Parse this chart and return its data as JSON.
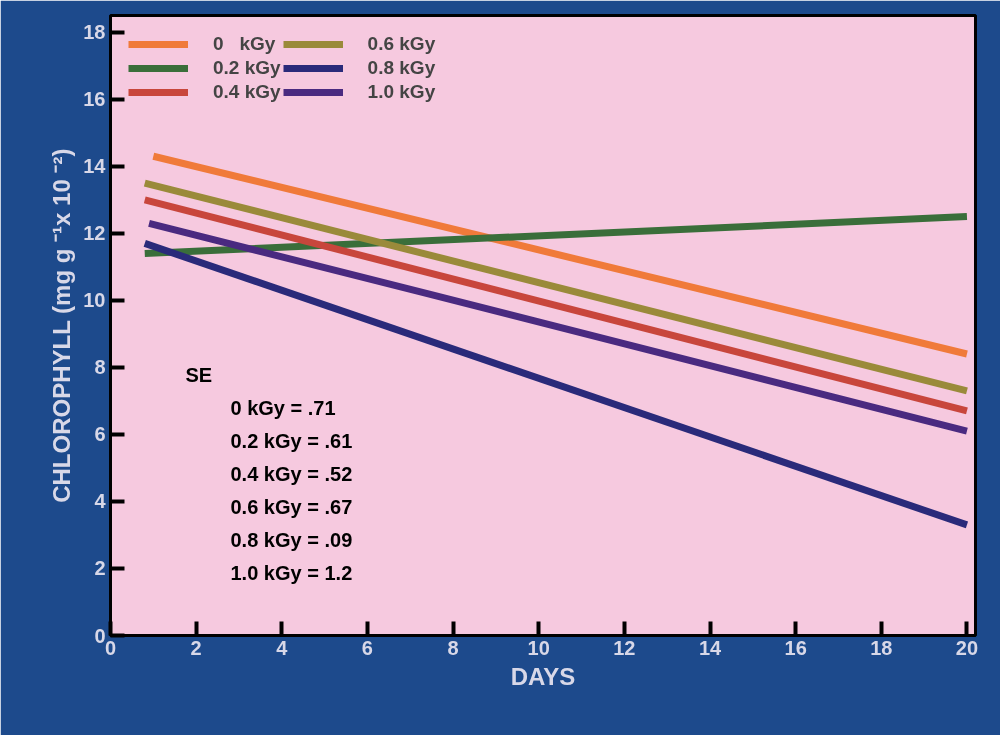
{
  "chart_data": {
    "type": "line",
    "xlabel": "DAYS",
    "ylabel": "CHLOROPHYLL (mg g ⁻¹x 10 ⁻²)",
    "xlim": [
      0,
      20.2
    ],
    "ylim": [
      0,
      18.5
    ],
    "xticks": [
      0,
      2,
      4,
      6,
      8,
      10,
      12,
      14,
      16,
      18,
      20
    ],
    "yticks": [
      0,
      2,
      4,
      6,
      8,
      10,
      12,
      14,
      16,
      18
    ],
    "grid": false,
    "legend": "top left",
    "line_style": "solid",
    "marker": "none",
    "series": [
      {
        "name": "0   kGy",
        "color": "#f07a3a",
        "x": [
          1.0,
          20
        ],
        "values": [
          14.3,
          8.4
        ]
      },
      {
        "name": "0.2 kGy",
        "color": "#3a6e3a",
        "x": [
          0.8,
          20
        ],
        "values": [
          11.4,
          12.5
        ]
      },
      {
        "name": "0.4 kGy",
        "color": "#c8463c",
        "x": [
          0.8,
          20
        ],
        "values": [
          13.0,
          6.7
        ]
      },
      {
        "name": "0.6 kGy",
        "color": "#9a8a3a",
        "x": [
          0.8,
          20
        ],
        "values": [
          13.5,
          7.3
        ]
      },
      {
        "name": "0.8 kGy",
        "color": "#2a2a7a",
        "x": [
          0.8,
          20
        ],
        "values": [
          11.7,
          3.3
        ]
      },
      {
        "name": "1.0 kGy",
        "color": "#4a2a80",
        "x": [
          0.9,
          7.4,
          20
        ],
        "values": [
          12.3,
          10.2,
          6.1
        ]
      }
    ],
    "annotations": [
      "SE",
      "0   kGy = .71",
      "0.2 kGy = .61",
      "0.4 kGy = .52",
      "0.6 kGy = .67",
      "0.8 kGy = .09",
      "1.0 kGy = 1.2"
    ]
  }
}
